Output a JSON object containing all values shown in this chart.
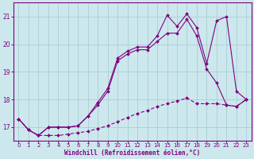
{
  "background_color": "#cce8ed",
  "grid_color": "#aacdd4",
  "line_color": "#800080",
  "xlabel": "Windchill (Refroidissement éolien,°C)",
  "xlabel_color": "#800080",
  "yticks": [
    17,
    18,
    19,
    20,
    21
  ],
  "xticks": [
    0,
    1,
    2,
    3,
    4,
    5,
    6,
    7,
    8,
    9,
    10,
    11,
    12,
    13,
    14,
    15,
    16,
    17,
    18,
    19,
    20,
    21,
    22,
    23
  ],
  "xlim": [
    -0.5,
    23.5
  ],
  "ylim": [
    16.5,
    21.5
  ],
  "line1_x": [
    0,
    1,
    2,
    3,
    4,
    5,
    6,
    7,
    8,
    9,
    10,
    11,
    12,
    13,
    14,
    15,
    16,
    17,
    18,
    19,
    20,
    21,
    22,
    23
  ],
  "line1_y": [
    17.3,
    16.9,
    16.7,
    16.7,
    16.7,
    16.75,
    16.8,
    16.85,
    16.95,
    17.05,
    17.2,
    17.35,
    17.5,
    17.6,
    17.75,
    17.85,
    17.95,
    18.05,
    17.85,
    17.85,
    17.85,
    17.8,
    17.75,
    18.0
  ],
  "line2_x": [
    0,
    1,
    2,
    3,
    4,
    5,
    6,
    7,
    8,
    9,
    10,
    11,
    12,
    13,
    14,
    15,
    16,
    17,
    18,
    19,
    20,
    21,
    22,
    23
  ],
  "line2_y": [
    17.3,
    16.9,
    16.7,
    17.0,
    17.0,
    17.0,
    17.05,
    17.4,
    17.8,
    18.3,
    19.4,
    19.65,
    19.8,
    19.8,
    20.1,
    20.4,
    20.4,
    20.9,
    20.3,
    19.1,
    18.6,
    17.8,
    17.75,
    18.0
  ],
  "line3_x": [
    0,
    1,
    2,
    3,
    4,
    5,
    6,
    7,
    8,
    9,
    10,
    11,
    12,
    13,
    14,
    15,
    16,
    17,
    18,
    19,
    20,
    21,
    22,
    23
  ],
  "line3_y": [
    17.3,
    16.9,
    16.7,
    17.0,
    17.0,
    17.0,
    17.05,
    17.4,
    17.9,
    18.4,
    19.5,
    19.75,
    19.9,
    19.9,
    20.3,
    21.05,
    20.65,
    21.1,
    20.6,
    19.3,
    20.85,
    21.0,
    18.3,
    18.0
  ]
}
